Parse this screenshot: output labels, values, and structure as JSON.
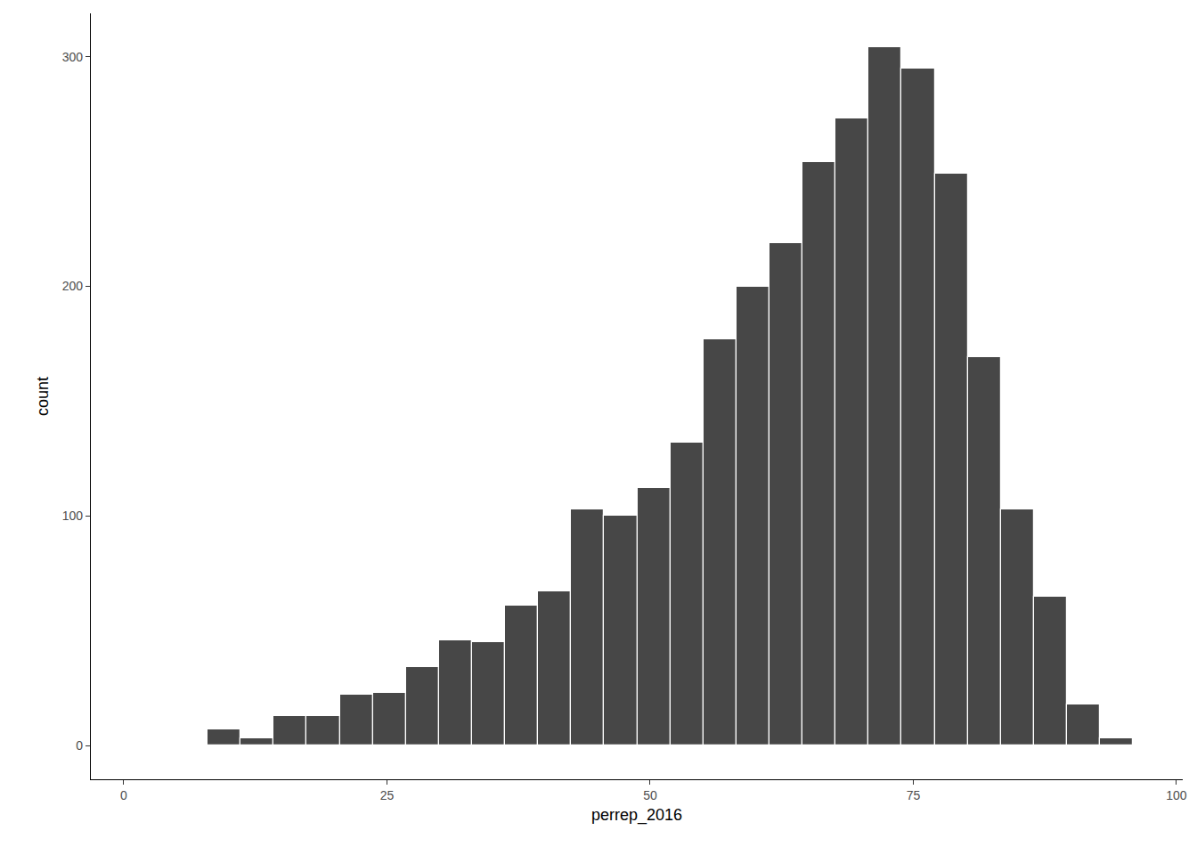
{
  "chart_data": {
    "type": "histogram",
    "xlabel": "perrep_2016",
    "ylabel": "count",
    "bins": [
      7.96,
      11.1,
      14.24,
      17.38,
      20.52,
      23.66,
      26.8,
      29.94,
      33.08,
      36.22,
      39.36,
      42.5,
      45.64,
      48.78,
      51.92,
      55.06,
      58.2,
      61.34,
      64.48,
      67.62,
      70.76,
      73.9,
      77.04,
      80.18,
      83.32,
      86.46,
      89.6,
      92.74,
      95.88
    ],
    "counts": [
      7,
      3,
      13,
      13,
      22,
      23,
      34,
      46,
      45,
      61,
      67,
      103,
      100,
      112,
      132,
      177,
      200,
      219,
      254,
      273,
      304,
      295,
      249,
      169,
      103,
      65,
      18,
      3
    ],
    "color": "#474747",
    "xlim": [
      -3.13,
      100.6
    ],
    "ylim": [
      -14.7,
      318.9
    ],
    "xticks": [
      0,
      25,
      50,
      75,
      100
    ],
    "yticks": [
      0,
      100,
      200,
      300
    ],
    "grid": false
  }
}
